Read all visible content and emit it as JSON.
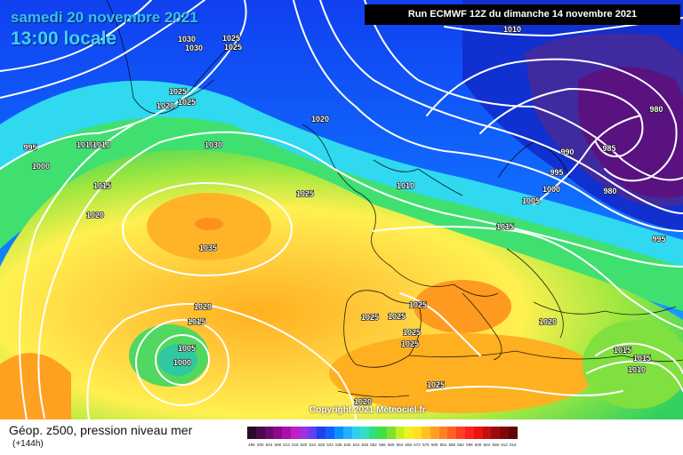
{
  "header": {
    "date_line": "samedi 20 novembre 2021",
    "time_line": "13:00 locale",
    "run_info": "Run ECMWF 12Z du dimanche 14 novembre 2021"
  },
  "footer": {
    "field_title": "Géop. z500, pression niveau mer",
    "forecast_step": "(+144h)",
    "copyright": "Copyright 2021 Meteociel.fr"
  },
  "isobar_labels": [
    {
      "id": "l1",
      "text": "1030"
    },
    {
      "id": "l2",
      "text": "1025"
    },
    {
      "id": "l3",
      "text": "1030"
    },
    {
      "id": "l4",
      "text": "1025"
    },
    {
      "id": "l5",
      "text": "1010"
    },
    {
      "id": "l6",
      "text": "1025"
    },
    {
      "id": "l7",
      "text": "1020"
    },
    {
      "id": "l8",
      "text": "1025"
    },
    {
      "id": "l9",
      "text": "1020"
    },
    {
      "id": "l10",
      "text": "980"
    },
    {
      "id": "l11",
      "text": "995"
    },
    {
      "id": "l12",
      "text": "1010"
    },
    {
      "id": "l13",
      "text": "1010"
    },
    {
      "id": "l14",
      "text": "1030"
    },
    {
      "id": "l15",
      "text": "990"
    },
    {
      "id": "l16",
      "text": "985"
    },
    {
      "id": "l17",
      "text": "1000"
    },
    {
      "id": "l18",
      "text": "995"
    },
    {
      "id": "l19",
      "text": "1015"
    },
    {
      "id": "l20",
      "text": "1010"
    },
    {
      "id": "l21",
      "text": "1000"
    },
    {
      "id": "l22",
      "text": "980"
    },
    {
      "id": "l23",
      "text": "1025"
    },
    {
      "id": "l24",
      "text": "1005"
    },
    {
      "id": "l25",
      "text": "1020"
    },
    {
      "id": "l26",
      "text": "1015"
    },
    {
      "id": "l27",
      "text": "995"
    },
    {
      "id": "l28",
      "text": "1035"
    },
    {
      "id": "l29",
      "text": "1020"
    },
    {
      "id": "l30",
      "text": "1025"
    },
    {
      "id": "l31",
      "text": "1025"
    },
    {
      "id": "l32",
      "text": "1025"
    },
    {
      "id": "l33",
      "text": "1015"
    },
    {
      "id": "l34",
      "text": "1020"
    },
    {
      "id": "l35",
      "text": "1025"
    },
    {
      "id": "l36",
      "text": "1025"
    },
    {
      "id": "l37",
      "text": "1005"
    },
    {
      "id": "l38",
      "text": "1000"
    },
    {
      "id": "l39",
      "text": "1015"
    },
    {
      "id": "l40",
      "text": "1015"
    },
    {
      "id": "l41",
      "text": "1010"
    },
    {
      "id": "l42",
      "text": "1025"
    },
    {
      "id": "l43",
      "text": "1020"
    }
  ],
  "color_scale": {
    "labels": [
      "496",
      "500",
      "504",
      "508",
      "512",
      "516",
      "520",
      "524",
      "528",
      "532",
      "536",
      "540",
      "544",
      "548",
      "552",
      "556",
      "560",
      "564",
      "568",
      "572",
      "576",
      "580",
      "584",
      "588",
      "592",
      "596",
      "600",
      "604",
      "608",
      "612",
      "616"
    ],
    "colors": [
      "#2a0a2a",
      "#4a0a4a",
      "#6a0a6a",
      "#8a0a8a",
      "#aa10aa",
      "#c020c0",
      "#a030e0",
      "#6040f0",
      "#2040f0",
      "#1060ff",
      "#1090ff",
      "#20b0ff",
      "#30d0f0",
      "#30e0c0",
      "#30e080",
      "#40e040",
      "#80e030",
      "#c0f020",
      "#f0f020",
      "#ffe020",
      "#ffc020",
      "#ffa020",
      "#ff8020",
      "#ff6020",
      "#ff4020",
      "#ff2020",
      "#f01010",
      "#c01010",
      "#a00a0a",
      "#800808",
      "#600606"
    ]
  }
}
